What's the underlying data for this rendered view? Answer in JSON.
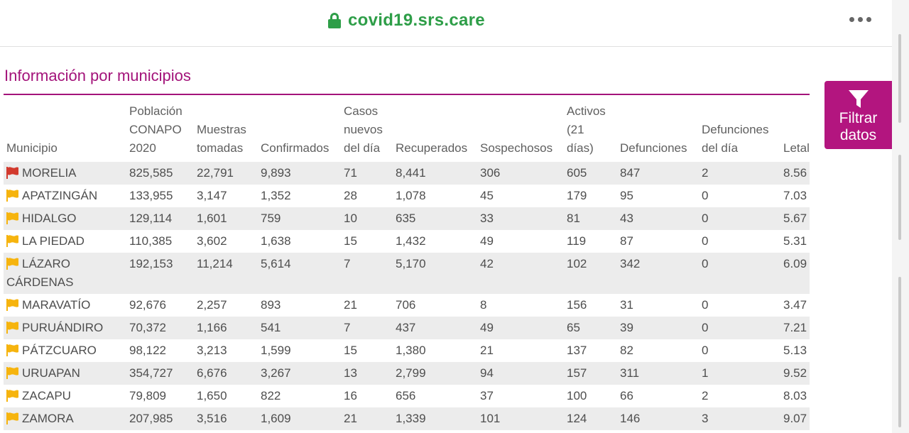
{
  "browser": {
    "url": "covid19.srs.care"
  },
  "section": {
    "title": "Información por municipios"
  },
  "filter": {
    "line1": "Filtrar",
    "line2": "datos"
  },
  "table": {
    "headers": [
      "Municipio",
      "Población CONAPO 2020",
      "Muestras tomadas",
      "Confirmados",
      "Casos nuevos del día",
      "Recuperados",
      "Sospechosos",
      "Activos (21 días)",
      "Defunciones",
      "Defunciones del día",
      "Letal"
    ],
    "rows": [
      {
        "flag": "red",
        "name": "MORELIA",
        "poblacion": "825,585",
        "muestras": "22,791",
        "confirmados": "9,893",
        "nuevos": "71",
        "recuperados": "8,441",
        "sospechosos": "306",
        "activos": "605",
        "defunciones": "847",
        "def_dia": "2",
        "letal": "8.56"
      },
      {
        "flag": "yellow",
        "name": "APATZINGÁN",
        "poblacion": "133,955",
        "muestras": "3,147",
        "confirmados": "1,352",
        "nuevos": "28",
        "recuperados": "1,078",
        "sospechosos": "45",
        "activos": "179",
        "defunciones": "95",
        "def_dia": "0",
        "letal": "7.03"
      },
      {
        "flag": "yellow",
        "name": "HIDALGO",
        "poblacion": "129,114",
        "muestras": "1,601",
        "confirmados": "759",
        "nuevos": "10",
        "recuperados": "635",
        "sospechosos": "33",
        "activos": "81",
        "defunciones": "43",
        "def_dia": "0",
        "letal": "5.67"
      },
      {
        "flag": "yellow",
        "name": "LA PIEDAD",
        "poblacion": "110,385",
        "muestras": "3,602",
        "confirmados": "1,638",
        "nuevos": "15",
        "recuperados": "1,432",
        "sospechosos": "49",
        "activos": "119",
        "defunciones": "87",
        "def_dia": "0",
        "letal": "5.31"
      },
      {
        "flag": "yellow",
        "name": "LÁZARO CÁRDENAS",
        "poblacion": "192,153",
        "muestras": "11,214",
        "confirmados": "5,614",
        "nuevos": "7",
        "recuperados": "5,170",
        "sospechosos": "42",
        "activos": "102",
        "defunciones": "342",
        "def_dia": "0",
        "letal": "6.09"
      },
      {
        "flag": "yellow",
        "name": "MARAVATÍO",
        "poblacion": "92,676",
        "muestras": "2,257",
        "confirmados": "893",
        "nuevos": "21",
        "recuperados": "706",
        "sospechosos": "8",
        "activos": "156",
        "defunciones": "31",
        "def_dia": "0",
        "letal": "3.47"
      },
      {
        "flag": "yellow",
        "name": "PURUÁNDIRO",
        "poblacion": "70,372",
        "muestras": "1,166",
        "confirmados": "541",
        "nuevos": "7",
        "recuperados": "437",
        "sospechosos": "49",
        "activos": "65",
        "defunciones": "39",
        "def_dia": "0",
        "letal": "7.21"
      },
      {
        "flag": "yellow",
        "name": "PÁTZCUARO",
        "poblacion": "98,122",
        "muestras": "3,213",
        "confirmados": "1,599",
        "nuevos": "15",
        "recuperados": "1,380",
        "sospechosos": "21",
        "activos": "137",
        "defunciones": "82",
        "def_dia": "0",
        "letal": "5.13"
      },
      {
        "flag": "yellow",
        "name": "URUAPAN",
        "poblacion": "354,727",
        "muestras": "6,676",
        "confirmados": "3,267",
        "nuevos": "13",
        "recuperados": "2,799",
        "sospechosos": "94",
        "activos": "157",
        "defunciones": "311",
        "def_dia": "1",
        "letal": "9.52"
      },
      {
        "flag": "yellow",
        "name": "ZACAPU",
        "poblacion": "79,809",
        "muestras": "1,650",
        "confirmados": "822",
        "nuevos": "16",
        "recuperados": "656",
        "sospechosos": "37",
        "activos": "100",
        "defunciones": "66",
        "def_dia": "2",
        "letal": "8.03"
      },
      {
        "flag": "yellow",
        "name": "ZAMORA",
        "poblacion": "207,985",
        "muestras": "3,516",
        "confirmados": "1,609",
        "nuevos": "21",
        "recuperados": "1,339",
        "sospechosos": "101",
        "activos": "124",
        "defunciones": "146",
        "def_dia": "3",
        "letal": "9.07"
      }
    ]
  },
  "colors": {
    "accent": "#a3137a",
    "url_green": "#2e9e48",
    "flag_red": "#d23a2e",
    "flag_yellow": "#f6b40e"
  },
  "icons": {
    "lock": "lock-icon",
    "menu": "more-horizontal-icon",
    "filter": "funnel-icon",
    "flag": "flag-icon"
  }
}
